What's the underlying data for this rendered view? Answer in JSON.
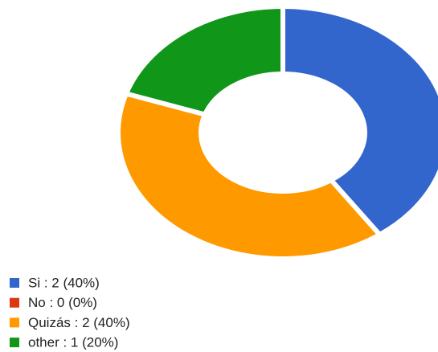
{
  "chart_data": {
    "type": "donut",
    "categories": [
      "Si",
      "No",
      "Quizás",
      "other"
    ],
    "legend_labels": [
      "Si : 2 (40%)",
      "No : 0 (0%)",
      "Quizás : 2 (40%)",
      "other : 1 (20%)"
    ],
    "values": [
      2,
      0,
      2,
      1
    ],
    "colors": [
      "#3366cc",
      "#dc3912",
      "#ff9900",
      "#109618"
    ]
  }
}
